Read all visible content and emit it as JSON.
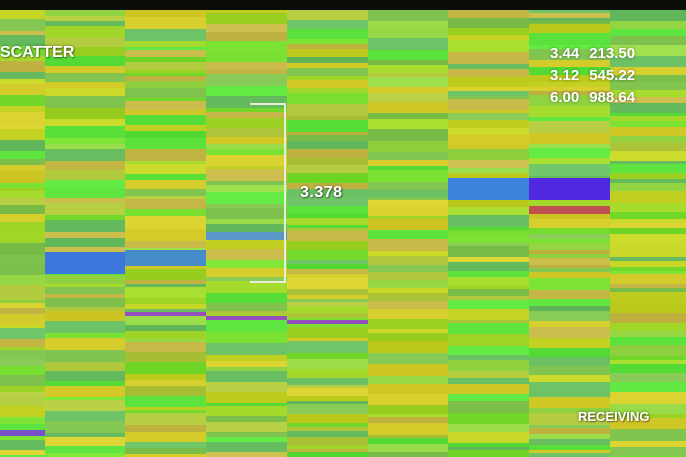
{
  "labels": {
    "scatter": "SCATTER",
    "receiving": "RECEIVING"
  },
  "bracket_value": "3.378",
  "readout": [
    {
      "a": "3.44",
      "b": "213.50"
    },
    {
      "a": "3.12",
      "b": "545.22"
    },
    {
      "a": "6.00",
      "b": "988.64"
    }
  ],
  "colors": {
    "background": "#8fd63a",
    "top_bar": "#0b0d08",
    "green": "#57e23a",
    "yellow": "#d6dc2a",
    "blue": "#3b7bd9",
    "purple": "#5a3ad0",
    "label_text": "#ffffff"
  }
}
